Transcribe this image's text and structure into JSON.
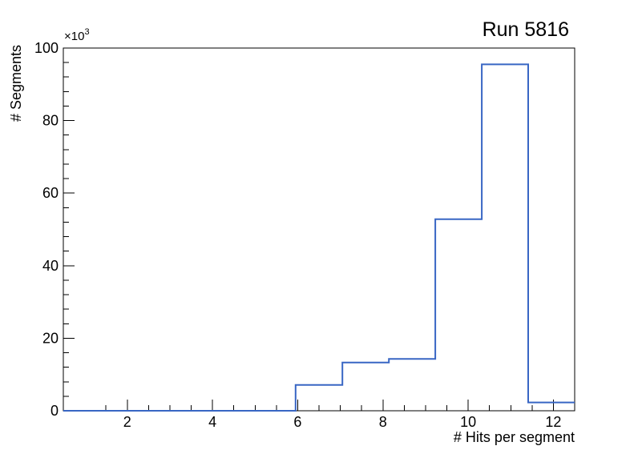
{
  "title": "Run 5816",
  "x_axis": {
    "title": "# Hits per segment",
    "min": 0.5,
    "max": 12.5,
    "major_ticks": [
      2,
      4,
      6,
      8,
      10,
      12
    ],
    "minor_step": 0.5
  },
  "y_axis": {
    "title": "# Segments",
    "exponent_base": "×10",
    "exponent_power": "3",
    "unit_scale": 1000,
    "min": 0,
    "max": 100,
    "major_ticks": [
      0,
      20,
      40,
      60,
      80,
      100
    ],
    "minor_step": 4
  },
  "colors": {
    "histogram_line": "#3866c4",
    "frame": "#000000",
    "background": "#ffffff"
  },
  "chart_data": {
    "type": "histogram-step",
    "title": "Run 5816",
    "xlabel": "# Hits per segment",
    "ylabel": "# Segments",
    "y_unit": "×10^3",
    "xlim": [
      0.5,
      12.5
    ],
    "ylim_thousands": [
      0,
      100
    ],
    "bin_edges": [
      0.5,
      1.59,
      2.68,
      3.77,
      4.86,
      5.95,
      7.05,
      8.14,
      9.23,
      10.32,
      11.41,
      12.5
    ],
    "counts_thousands": [
      0,
      0,
      0,
      0,
      0,
      7.1,
      13.3,
      14.3,
      52.8,
      95.5,
      2.3
    ],
    "legend": "none",
    "grid": false
  }
}
